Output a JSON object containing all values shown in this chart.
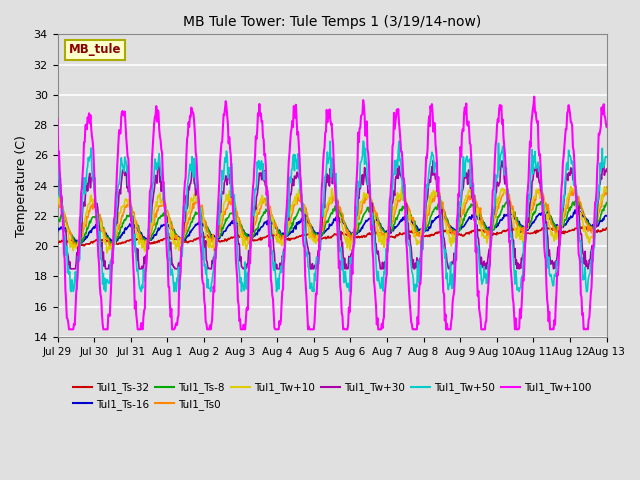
{
  "title": "MB Tule Tower: Tule Temps 1 (3/19/14-now)",
  "ylabel": "Temperature (C)",
  "ylim": [
    14,
    34
  ],
  "yticks": [
    14,
    16,
    18,
    20,
    22,
    24,
    26,
    28,
    30,
    32,
    34
  ],
  "bg_color": "#e0e0e0",
  "plot_bg_color": "#e0e0e0",
  "grid_color": "#ffffff",
  "station_label": "MB_tule",
  "series_order": [
    "Tul1_Ts-32",
    "Tul1_Ts-16",
    "Tul1_Ts-8",
    "Tul1_Ts0",
    "Tul1_Tw+10",
    "Tul1_Tw+30",
    "Tul1_Tw+50",
    "Tul1_Tw+100"
  ],
  "series_colors": [
    "#cc0000",
    "#0000cc",
    "#00aa00",
    "#ff8800",
    "#ddcc00",
    "#aa00aa",
    "#00cccc",
    "#ff00ff"
  ],
  "series_lw": [
    1.2,
    1.2,
    1.2,
    1.2,
    1.2,
    1.2,
    1.2,
    1.5
  ],
  "xtick_labels": [
    "Jul 29",
    "Jul 30",
    "Jul 31",
    "Aug 1",
    "Aug 2",
    "Aug 3",
    "Aug 4",
    "Aug 5",
    "Aug 6",
    "Aug 7",
    "Aug 8",
    "Aug 9",
    "Aug 10",
    "Aug 11",
    "Aug 12",
    "Aug 13"
  ],
  "n_days": 16
}
